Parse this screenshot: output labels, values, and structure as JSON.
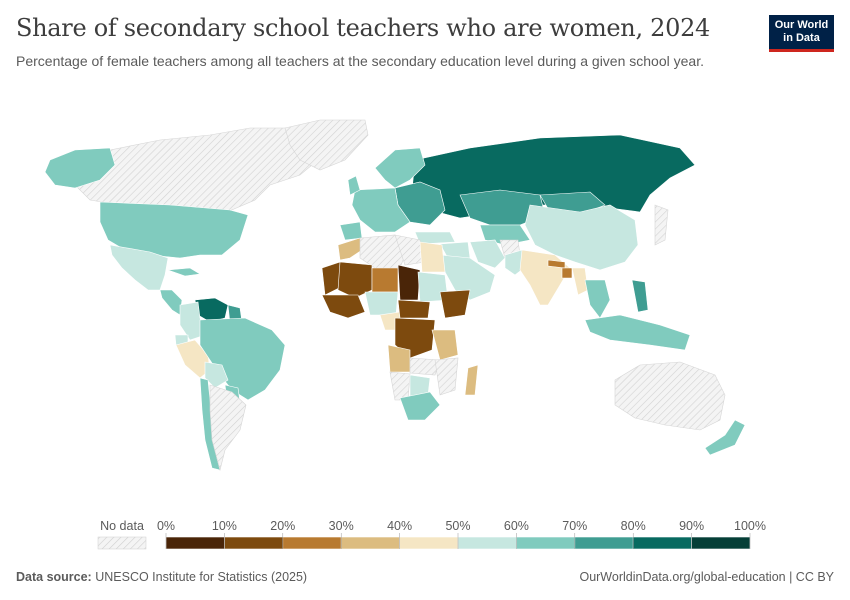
{
  "header": {
    "title": "Share of secondary school teachers who are women, 2024",
    "subtitle": "Percentage of female teachers among all teachers at the secondary education level during a given school year."
  },
  "logo": {
    "line1": "Our World",
    "line2": "in Data"
  },
  "legend": {
    "no_data_label": "No data",
    "ticks": [
      "0%",
      "10%",
      "20%",
      "30%",
      "40%",
      "50%",
      "60%",
      "70%",
      "80%",
      "90%",
      "100%"
    ],
    "colors": [
      "#4a2508",
      "#7d4a0e",
      "#b87a30",
      "#dcbc80",
      "#f5e6c4",
      "#c6e7e0",
      "#80cbbe",
      "#3f9d92",
      "#086a60",
      "#053f37"
    ]
  },
  "footer": {
    "source_label": "Data source:",
    "source_text": "UNESCO Institute for Statistics (2025)",
    "link_text": "OurWorldinData.org/global-education | CC BY"
  },
  "map_data": {
    "no_data_color": "#f2f2f2",
    "regions": [
      {
        "name": "Canada",
        "value": null
      },
      {
        "name": "Greenland",
        "value": null
      },
      {
        "name": "Alaska",
        "value": 65
      },
      {
        "name": "United States",
        "value": 65
      },
      {
        "name": "Mexico",
        "value": 55
      },
      {
        "name": "Cuba",
        "value": 65
      },
      {
        "name": "Central America",
        "value": 60
      },
      {
        "name": "Venezuela",
        "value": 85
      },
      {
        "name": "Guyana",
        "value": 75
      },
      {
        "name": "Colombia",
        "value": 55
      },
      {
        "name": "Ecuador",
        "value": 55
      },
      {
        "name": "Peru",
        "value": 45
      },
      {
        "name": "Brazil",
        "value": 65
      },
      {
        "name": "Bolivia",
        "value": 55
      },
      {
        "name": "Paraguay",
        "value": 65
      },
      {
        "name": "Chile",
        "value": 65
      },
      {
        "name": "Argentina",
        "value": null
      },
      {
        "name": "Russia",
        "value": 85
      },
      {
        "name": "Scandinavia",
        "value": 60
      },
      {
        "name": "Eastern Europe",
        "value": 75
      },
      {
        "name": "Central Europe",
        "value": 65
      },
      {
        "name": "United Kingdom",
        "value": 65
      },
      {
        "name": "Spain",
        "value": 60
      },
      {
        "name": "Kazakhstan",
        "value": 75
      },
      {
        "name": "Central Asia",
        "value": 65
      },
      {
        "name": "Mongolia",
        "value": 75
      },
      {
        "name": "China",
        "value": 55
      },
      {
        "name": "Turkey",
        "value": 55
      },
      {
        "name": "Middle East",
        "value": 55
      },
      {
        "name": "Arabian Peninsula",
        "value": 55
      },
      {
        "name": "Iran",
        "value": 55
      },
      {
        "name": "Afghanistan",
        "value": null
      },
      {
        "name": "Pakistan",
        "value": 55
      },
      {
        "name": "India",
        "value": 45
      },
      {
        "name": "Nepal",
        "value": 25
      },
      {
        "name": "Bangladesh",
        "value": 25
      },
      {
        "name": "Myanmar",
        "value": 45
      },
      {
        "name": "Southeast Asia",
        "value": 65
      },
      {
        "name": "Philippines",
        "value": 75
      },
      {
        "name": "Indonesia",
        "value": 65
      },
      {
        "name": "Japan",
        "value": null
      },
      {
        "name": "Australia",
        "value": null
      },
      {
        "name": "New Zealand",
        "value": 65
      },
      {
        "name": "Morocco",
        "value": 35
      },
      {
        "name": "Algeria",
        "value": null
      },
      {
        "name": "Libya",
        "value": null
      },
      {
        "name": "Egypt",
        "value": 45
      },
      {
        "name": "Mauritania",
        "value": 15
      },
      {
        "name": "Mali",
        "value": 15
      },
      {
        "name": "Niger",
        "value": 25
      },
      {
        "name": "Chad",
        "value": 5
      },
      {
        "name": "Sudan",
        "value": 55
      },
      {
        "name": "Ethiopia",
        "value": 15
      },
      {
        "name": "West Africa coast",
        "value": 15
      },
      {
        "name": "Nigeria",
        "value": 55
      },
      {
        "name": "Cameroon",
        "value": 45
      },
      {
        "name": "Central African Republic",
        "value": 15
      },
      {
        "name": "DR Congo",
        "value": 15
      },
      {
        "name": "Tanzania",
        "value": 35
      },
      {
        "name": "Angola",
        "value": 35
      },
      {
        "name": "Zambia",
        "value": null
      },
      {
        "name": "Mozambique",
        "value": null
      },
      {
        "name": "Namibia",
        "value": null
      },
      {
        "name": "Botswana",
        "value": 55
      },
      {
        "name": "South Africa",
        "value": 65
      },
      {
        "name": "Madagascar",
        "value": 35
      }
    ]
  }
}
